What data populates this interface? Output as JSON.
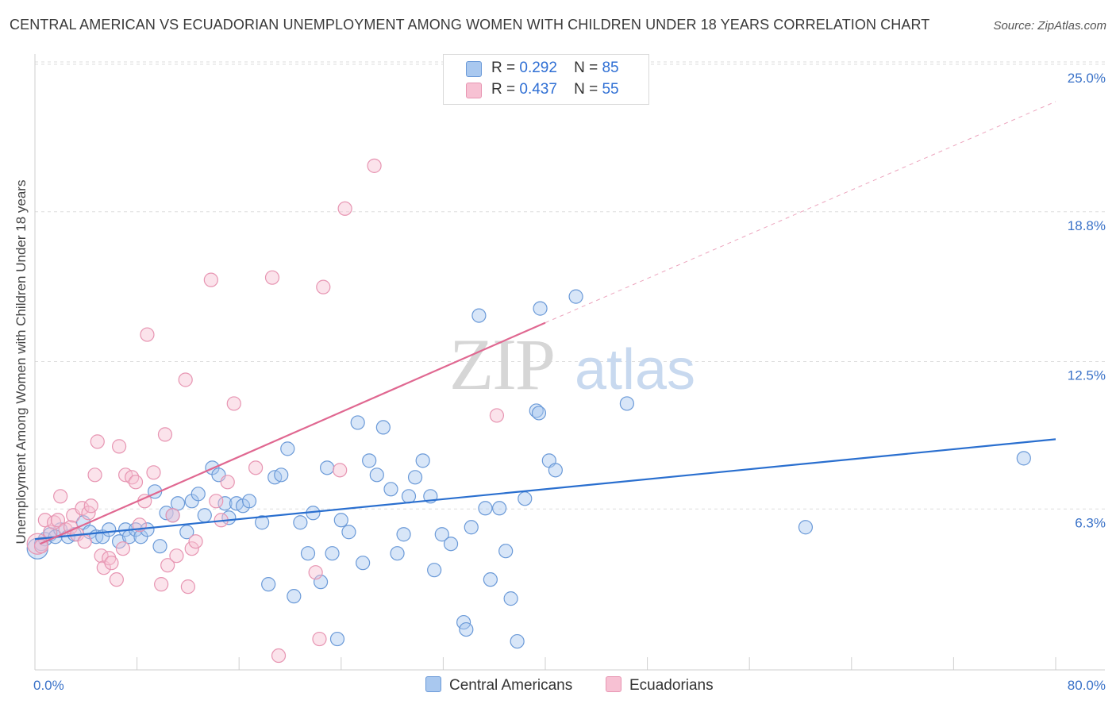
{
  "title": "CENTRAL AMERICAN VS ECUADORIAN UNEMPLOYMENT AMONG WOMEN WITH CHILDREN UNDER 18 YEARS CORRELATION CHART",
  "source": "Source: ZipAtlas.com",
  "watermark": {
    "zip": "ZIP",
    "atlas": "atlas"
  },
  "legend": {
    "r_label": "R =",
    "n_label": "N =",
    "entries": [
      {
        "r": "0.292",
        "n": "85"
      },
      {
        "r": "0.437",
        "n": "55"
      }
    ]
  },
  "colors": {
    "blue_fill": "#a9c8ef",
    "blue_stroke": "#6b9ad8",
    "blue_line": "#2a6fcf",
    "pink_fill": "#f7c1d3",
    "pink_stroke": "#e795b2",
    "pink_line": "#e06891",
    "axis_text": "#3a72c8"
  },
  "chart_data": {
    "type": "scatter",
    "title": "CENTRAL AMERICAN VS ECUADORIAN UNEMPLOYMENT AMONG WOMEN WITH CHILDREN UNDER 18 YEARS CORRELATION CHART",
    "xlabel": "",
    "ylabel": "Unemployment Among Women with Children Under 18 years",
    "xlim": [
      0,
      80
    ],
    "ylim": [
      0,
      25
    ],
    "x_tick_labels": [
      "0.0%",
      "80.0%"
    ],
    "y_ticks": [
      6.3,
      12.5,
      18.8,
      25.0
    ],
    "y_tick_labels": [
      "6.3%",
      "12.5%",
      "18.8%",
      "25.0%"
    ],
    "grid": true,
    "series": [
      {
        "name": "Central Americans",
        "r": 0.292,
        "n": 85,
        "trend": {
          "x": [
            0,
            80
          ],
          "y": [
            5.6,
            9.8
          ],
          "dashed_extension": false
        },
        "points": [
          [
            0.2,
            5.2
          ],
          [
            0.5,
            5.4
          ],
          [
            0.8,
            5.6
          ],
          [
            1.2,
            5.8
          ],
          [
            1.6,
            5.7
          ],
          [
            2.0,
            6.0
          ],
          [
            2.6,
            5.7
          ],
          [
            3.1,
            5.8
          ],
          [
            3.8,
            6.3
          ],
          [
            4.3,
            5.9
          ],
          [
            4.8,
            5.7
          ],
          [
            5.3,
            5.7
          ],
          [
            5.8,
            6.0
          ],
          [
            6.6,
            5.5
          ],
          [
            7.1,
            6.0
          ],
          [
            7.4,
            5.7
          ],
          [
            7.9,
            6.0
          ],
          [
            8.3,
            5.7
          ],
          [
            8.8,
            6.0
          ],
          [
            9.4,
            7.6
          ],
          [
            9.8,
            5.3
          ],
          [
            10.3,
            6.7
          ],
          [
            10.8,
            6.6
          ],
          [
            11.2,
            7.1
          ],
          [
            11.9,
            5.9
          ],
          [
            12.3,
            7.2
          ],
          [
            12.8,
            7.5
          ],
          [
            13.3,
            6.6
          ],
          [
            13.9,
            8.6
          ],
          [
            14.4,
            8.3
          ],
          [
            14.9,
            7.1
          ],
          [
            15.2,
            6.5
          ],
          [
            15.8,
            7.1
          ],
          [
            16.3,
            7.0
          ],
          [
            16.8,
            7.2
          ],
          [
            17.8,
            6.3
          ],
          [
            18.3,
            3.7
          ],
          [
            18.8,
            8.2
          ],
          [
            19.3,
            8.3
          ],
          [
            19.8,
            9.4
          ],
          [
            20.3,
            3.2
          ],
          [
            20.8,
            6.3
          ],
          [
            21.4,
            5.0
          ],
          [
            21.8,
            6.7
          ],
          [
            22.4,
            3.8
          ],
          [
            22.9,
            8.6
          ],
          [
            23.3,
            5.0
          ],
          [
            23.7,
            1.4
          ],
          [
            24.0,
            6.4
          ],
          [
            24.6,
            5.9
          ],
          [
            25.3,
            10.5
          ],
          [
            25.7,
            4.6
          ],
          [
            26.2,
            8.9
          ],
          [
            26.8,
            8.3
          ],
          [
            27.3,
            10.3
          ],
          [
            27.9,
            7.7
          ],
          [
            28.4,
            5.0
          ],
          [
            28.9,
            5.8
          ],
          [
            29.3,
            7.4
          ],
          [
            29.8,
            8.2
          ],
          [
            30.4,
            8.9
          ],
          [
            31.0,
            7.4
          ],
          [
            31.3,
            4.3
          ],
          [
            31.9,
            5.8
          ],
          [
            32.6,
            5.4
          ],
          [
            33.6,
            2.1
          ],
          [
            33.8,
            1.8
          ],
          [
            34.2,
            6.1
          ],
          [
            34.8,
            15.0
          ],
          [
            35.3,
            6.9
          ],
          [
            35.7,
            3.9
          ],
          [
            36.4,
            6.9
          ],
          [
            36.9,
            5.1
          ],
          [
            37.3,
            3.1
          ],
          [
            37.8,
            1.3
          ],
          [
            38.4,
            7.3
          ],
          [
            39.3,
            11.0
          ],
          [
            39.6,
            15.3
          ],
          [
            40.3,
            8.9
          ],
          [
            40.8,
            8.5
          ],
          [
            42.4,
            15.8
          ],
          [
            46.4,
            11.3
          ],
          [
            60.4,
            6.1
          ],
          [
            77.5,
            9.0
          ],
          [
            39.5,
            10.9
          ]
        ]
      },
      {
        "name": "Ecuadorians",
        "r": 0.437,
        "n": 55,
        "trend": {
          "x": [
            0.4,
            40.0
          ],
          "y": [
            5.4,
            14.7
          ],
          "dashed_extension": {
            "x": [
              40.0,
              80.0
            ],
            "y": [
              14.7,
              24.0
            ]
          }
        },
        "points": [
          [
            0.2,
            5.4
          ],
          [
            0.5,
            5.3
          ],
          [
            0.8,
            6.4
          ],
          [
            1.2,
            5.9
          ],
          [
            1.5,
            6.3
          ],
          [
            1.8,
            6.4
          ],
          [
            2.0,
            7.4
          ],
          [
            2.4,
            6.0
          ],
          [
            2.8,
            6.1
          ],
          [
            3.0,
            6.6
          ],
          [
            3.3,
            5.8
          ],
          [
            3.7,
            6.9
          ],
          [
            3.9,
            5.5
          ],
          [
            4.2,
            6.7
          ],
          [
            4.4,
            7.0
          ],
          [
            4.7,
            8.3
          ],
          [
            4.9,
            9.7
          ],
          [
            5.2,
            4.9
          ],
          [
            5.4,
            4.4
          ],
          [
            5.8,
            4.8
          ],
          [
            6.0,
            4.6
          ],
          [
            6.4,
            3.9
          ],
          [
            6.6,
            9.5
          ],
          [
            6.9,
            5.2
          ],
          [
            7.1,
            8.3
          ],
          [
            7.6,
            8.2
          ],
          [
            7.9,
            8.0
          ],
          [
            8.2,
            6.2
          ],
          [
            8.6,
            7.2
          ],
          [
            8.8,
            14.2
          ],
          [
            9.3,
            8.4
          ],
          [
            9.9,
            3.7
          ],
          [
            10.2,
            10.0
          ],
          [
            10.4,
            4.5
          ],
          [
            10.8,
            6.6
          ],
          [
            11.1,
            4.9
          ],
          [
            11.8,
            12.3
          ],
          [
            12.0,
            3.6
          ],
          [
            12.3,
            5.2
          ],
          [
            12.6,
            5.5
          ],
          [
            13.8,
            16.5
          ],
          [
            14.2,
            7.2
          ],
          [
            14.6,
            6.4
          ],
          [
            15.1,
            8.0
          ],
          [
            15.6,
            11.3
          ],
          [
            17.3,
            8.6
          ],
          [
            18.6,
            16.6
          ],
          [
            19.1,
            0.7
          ],
          [
            22.0,
            4.2
          ],
          [
            22.3,
            1.4
          ],
          [
            22.6,
            16.2
          ],
          [
            23.9,
            8.5
          ],
          [
            24.3,
            19.5
          ],
          [
            26.6,
            21.3
          ],
          [
            36.2,
            10.8
          ]
        ]
      }
    ]
  },
  "bottom_legend": [
    "Central Americans",
    "Ecuadorians"
  ]
}
